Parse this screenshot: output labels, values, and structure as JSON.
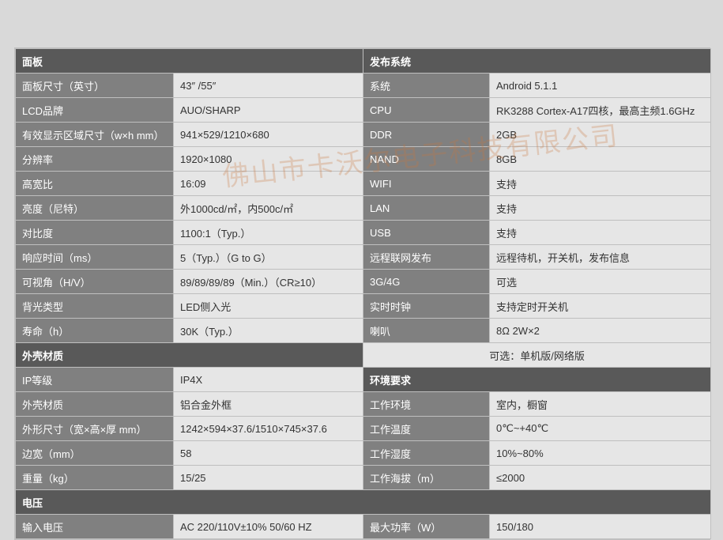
{
  "colors": {
    "page_bg": "#d9d9d9",
    "cell_border": "#bfbfbf",
    "header_bg": "#595959",
    "header_fg": "#ffffff",
    "label_bg": "#808080",
    "label_fg": "#ffffff",
    "value_bg": "#e6e6e6",
    "value_fg": "#333333",
    "watermark_color": "rgba(200,120,60,0.28)"
  },
  "watermark": "佛山市卡沃尔电子科技有限公司",
  "sections": {
    "panel": {
      "title": "面板",
      "rows": [
        [
          "面板尺寸（英寸）",
          "43″ /55″"
        ],
        [
          "LCD品牌",
          "AUO/SHARP"
        ],
        [
          "有效显示区域尺寸（w×h mm）",
          "941×529/1210×680"
        ],
        [
          "分辨率",
          "1920×1080"
        ],
        [
          "高宽比",
          "16:09"
        ],
        [
          "亮度（尼特）",
          "外1000cd/㎡，内500c/㎡"
        ],
        [
          "对比度",
          "1100:1（Typ.）"
        ],
        [
          "响应时间（ms）",
          "5（Typ.）（G to G）"
        ],
        [
          "可视角（H/V）",
          "89/89/89/89（Min.）（CR≥10）"
        ],
        [
          "背光类型",
          "LED侧入光"
        ],
        [
          "寿命（h）",
          "30K（Typ.）"
        ]
      ]
    },
    "system": {
      "title": "发布系统",
      "rows": [
        [
          "系统",
          "Android 5.1.1"
        ],
        [
          "CPU",
          "RK3288 Cortex-A17四核，最高主频1.6GHz"
        ],
        [
          "DDR",
          "2GB"
        ],
        [
          "NAND",
          "8GB"
        ],
        [
          "WIFI",
          "支持"
        ],
        [
          "LAN",
          "支持"
        ],
        [
          "USB",
          "支持"
        ],
        [
          "远程联网发布",
          "远程待机，开关机，发布信息"
        ],
        [
          "3G/4G",
          "可选"
        ],
        [
          "实时时钟",
          "支持定时开关机"
        ],
        [
          "喇叭",
          "8Ω 2W×2"
        ]
      ]
    },
    "shell": {
      "title": "外壳材质",
      "rows": [
        [
          "IP等级",
          "IP4X"
        ],
        [
          "外壳材质",
          "铝合金外框"
        ],
        [
          "外形尺寸（宽×高×厚 mm）",
          "1242×594×37.6/1510×745×37.6"
        ],
        [
          "边宽（mm）",
          "58"
        ],
        [
          "重量（kg）",
          "15/25"
        ]
      ]
    },
    "option_row": "可选：单机版/网络版",
    "env": {
      "title": "环境要求",
      "rows": [
        [
          "工作环境",
          "室内，橱窗"
        ],
        [
          "工作温度",
          "0℃~+40℃"
        ],
        [
          "工作湿度",
          "10%~80%"
        ],
        [
          "工作海拔（m）",
          "≤2000"
        ]
      ]
    },
    "power": {
      "title": "电压",
      "rows": [
        [
          "输入电压",
          "AC 220/110V±10%  50/60 HZ",
          "最大功率（W）",
          "150/180"
        ]
      ]
    }
  }
}
